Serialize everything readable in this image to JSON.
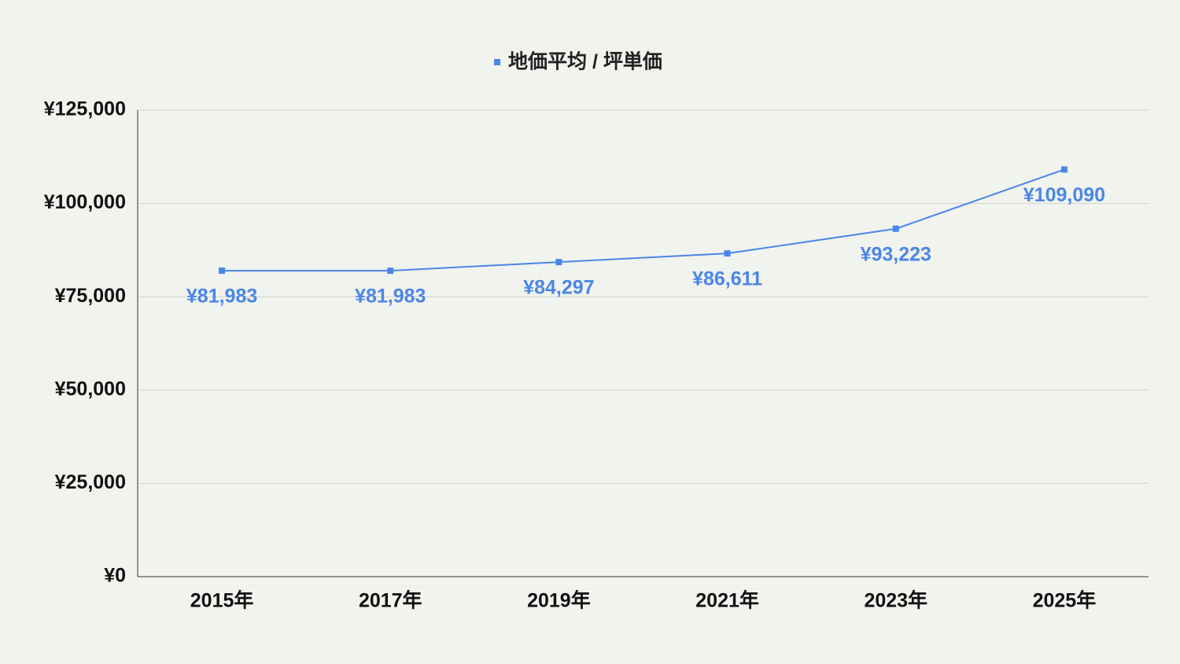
{
  "chart_data": {
    "type": "line",
    "categories": [
      "2015年",
      "2017年",
      "2019年",
      "2021年",
      "2023年",
      "2025年"
    ],
    "series": [
      {
        "name": "地価平均 / 坪単価",
        "color": "#4a86e8",
        "values": [
          81983,
          81983,
          84297,
          86611,
          93223,
          109090
        ],
        "value_labels": [
          "¥81,983",
          "¥81,983",
          "¥84,297",
          "¥86,611",
          "¥93,223",
          "¥109,090"
        ]
      }
    ],
    "ylim": [
      0,
      125000
    ],
    "yticks": [
      {
        "value": 0,
        "label": "¥0"
      },
      {
        "value": 25000,
        "label": "¥25,000"
      },
      {
        "value": 50000,
        "label": "¥50,000"
      },
      {
        "value": 75000,
        "label": "¥75,000"
      },
      {
        "value": 100000,
        "label": "¥100,000"
      },
      {
        "value": 125000,
        "label": "¥125,000"
      }
    ],
    "grid": true,
    "legend": "top"
  }
}
